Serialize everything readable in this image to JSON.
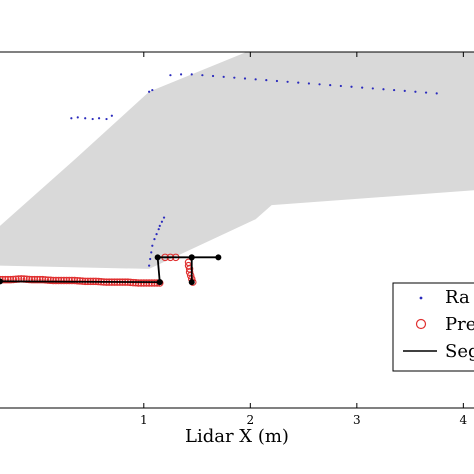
{
  "chart_data": {
    "type": "scatter",
    "xlabel": "Lidar X (m)",
    "ylabel": "",
    "xlim": [
      -0.35,
      4.1
    ],
    "ylim": [
      -1.0,
      3.3
    ],
    "xticks": [
      {
        "value": 1,
        "label": "1"
      },
      {
        "value": 2,
        "label": "2"
      },
      {
        "value": 3,
        "label": "3"
      },
      {
        "value": 4,
        "label": "4"
      }
    ],
    "grid": false,
    "legend_position": "right",
    "free_space_polygon": {
      "color": "#d9d9d9",
      "points": [
        [
          -0.35,
          1.2
        ],
        [
          0.35,
          2.0
        ],
        [
          1.05,
          2.82
        ],
        [
          2.25,
          3.45
        ],
        [
          4.1,
          3.3
        ],
        [
          4.1,
          1.63
        ],
        [
          2.2,
          1.45
        ],
        [
          2.05,
          1.28
        ],
        [
          1.05,
          0.68
        ],
        [
          -0.35,
          0.72
        ]
      ]
    },
    "series": [
      {
        "name": "Raw",
        "kind": "points",
        "color": "#2b2bbd",
        "segments": [
          [
            [
              0.32,
              2.5
            ],
            [
              0.38,
              2.51
            ],
            [
              0.45,
              2.5
            ],
            [
              0.52,
              2.49
            ],
            [
              0.58,
              2.5
            ],
            [
              0.65,
              2.49
            ]
          ],
          [
            [
              0.7,
              2.53
            ]
          ],
          [
            [
              1.05,
              2.82
            ],
            [
              1.08,
              2.84
            ]
          ],
          [
            [
              1.25,
              3.02
            ],
            [
              1.35,
              3.03
            ],
            [
              1.45,
              3.03
            ],
            [
              1.55,
              3.02
            ],
            [
              1.65,
              3.01
            ],
            [
              1.75,
              3.0
            ],
            [
              1.85,
              2.99
            ],
            [
              1.95,
              2.98
            ],
            [
              2.05,
              2.97
            ],
            [
              2.15,
              2.96
            ],
            [
              2.25,
              2.95
            ],
            [
              2.35,
              2.94
            ],
            [
              2.45,
              2.93
            ],
            [
              2.55,
              2.92
            ],
            [
              2.65,
              2.91
            ],
            [
              2.75,
              2.9
            ],
            [
              2.85,
              2.89
            ],
            [
              2.95,
              2.88
            ],
            [
              3.05,
              2.87
            ],
            [
              3.15,
              2.86
            ],
            [
              3.25,
              2.85
            ],
            [
              3.35,
              2.84
            ],
            [
              3.45,
              2.83
            ],
            [
              3.55,
              2.82
            ],
            [
              3.65,
              2.81
            ],
            [
              3.75,
              2.8
            ]
          ],
          [
            [
              1.05,
              0.72
            ],
            [
              1.06,
              0.8
            ],
            [
              1.07,
              0.88
            ],
            [
              1.08,
              0.96
            ],
            [
              1.1,
              1.04
            ],
            [
              1.12,
              1.1
            ],
            [
              1.14,
              1.16
            ]
          ],
          [
            [
              1.15,
              1.2
            ],
            [
              1.17,
              1.25
            ],
            [
              1.19,
              1.3
            ]
          ]
        ]
      },
      {
        "name": "Pre",
        "kind": "circles",
        "color": "#e03030",
        "segments": [
          [
            [
              -0.35,
              0.55
            ],
            [
              -0.25,
              0.55
            ],
            [
              -0.15,
              0.56
            ],
            [
              -0.05,
              0.55
            ],
            [
              0.05,
              0.55
            ],
            [
              0.15,
              0.54
            ],
            [
              0.25,
              0.54
            ],
            [
              0.35,
              0.54
            ],
            [
              0.45,
              0.53
            ],
            [
              0.55,
              0.53
            ],
            [
              0.65,
              0.52
            ],
            [
              0.75,
              0.52
            ],
            [
              0.85,
              0.52
            ],
            [
              0.95,
              0.51
            ],
            [
              1.05,
              0.51
            ],
            [
              1.15,
              0.51
            ]
          ],
          [
            [
              1.42,
              0.76
            ],
            [
              1.42,
              0.72
            ],
            [
              1.43,
              0.68
            ],
            [
              1.43,
              0.64
            ],
            [
              1.44,
              0.6
            ],
            [
              1.45,
              0.56
            ],
            [
              1.46,
              0.52
            ]
          ],
          [
            [
              1.2,
              0.82
            ],
            [
              1.25,
              0.82
            ],
            [
              1.3,
              0.82
            ]
          ]
        ]
      },
      {
        "name": "Seg",
        "kind": "lines",
        "color": "#000000",
        "segments": [
          [
            [
              -0.35,
              0.53
            ],
            [
              1.15,
              0.52
            ]
          ],
          [
            [
              1.15,
              0.52
            ],
            [
              1.13,
              0.82
            ],
            [
              1.45,
              0.82
            ],
            [
              1.45,
              0.52
            ]
          ],
          [
            [
              1.45,
              0.82
            ],
            [
              1.7,
              0.82
            ]
          ]
        ]
      }
    ],
    "legend": [
      {
        "name": "Ra",
        "marker": "dot",
        "color": "#2b2bbd"
      },
      {
        "name": "Pre",
        "marker": "circle",
        "color": "#e03030"
      },
      {
        "name": "Seg",
        "marker": "line",
        "color": "#000000"
      }
    ]
  }
}
